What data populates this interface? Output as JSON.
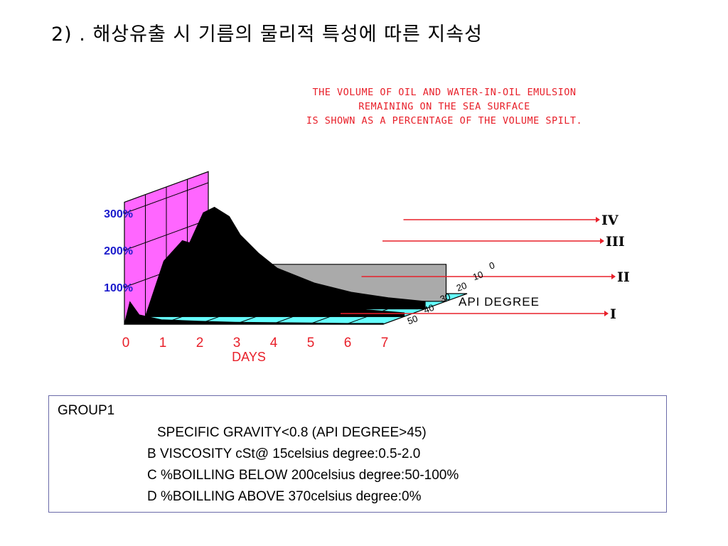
{
  "slide": {
    "title": "2) . 해상유출 시 기름의 물리적 특성에 따른  지속성"
  },
  "chart_data": {
    "type": "area",
    "title_lines": [
      "THE VOLUME OF OIL AND WATER-IN-OIL EMULSION",
      "REMAINING ON THE SEA SURFACE",
      "IS SHOWN AS A PERCENTAGE OF THE VOLUME SPILT."
    ],
    "xlabel": "DAYS",
    "ylabel": "",
    "zlabel": "API DEGREE",
    "x_ticks": [
      "0",
      "1",
      "2",
      "3",
      "4",
      "5",
      "6",
      "7"
    ],
    "y_ticks": [
      "100%",
      "200%",
      "300%"
    ],
    "z_ticks": [
      "0",
      "10",
      "20",
      "30",
      "40",
      "50"
    ],
    "xlim": [
      0,
      7
    ],
    "ylim": [
      0,
      300
    ],
    "series": [
      {
        "name": "I",
        "x": [
          0,
          0.15,
          0.4,
          1,
          2,
          3,
          4,
          5,
          6,
          7
        ],
        "y": [
          0,
          60,
          25,
          12,
          8,
          5,
          4,
          3,
          2,
          2
        ]
      },
      {
        "name": "II",
        "x": [
          0,
          0.5,
          1,
          1.5,
          2,
          2.5,
          3,
          4,
          5,
          6,
          7
        ],
        "y": [
          0,
          150,
          205,
          190,
          160,
          120,
          90,
          50,
          30,
          18,
          10
        ]
      },
      {
        "name": "III",
        "x": [
          0,
          0.5,
          1,
          1.3,
          1.7,
          2,
          2.5,
          3,
          4,
          5,
          6,
          7
        ],
        "y": [
          0,
          150,
          260,
          275,
          250,
          200,
          150,
          110,
          70,
          45,
          30,
          20
        ]
      },
      {
        "name": "IV",
        "x": [
          0,
          0.5,
          1,
          2,
          3,
          4,
          5,
          6,
          7
        ],
        "y": [
          0,
          40,
          95,
          100,
          100,
          100,
          100,
          100,
          100
        ]
      }
    ],
    "grid": true,
    "colors": {
      "back_wall": "#ff66ff",
      "floor": "#66ffff",
      "annotation_red": "#e8202a",
      "axis_blue": "#1a1acc",
      "curve": "#000000",
      "area_iv": "#aaaaaa"
    }
  },
  "group_box": {
    "heading": "GROUP1",
    "lines": [
      "SPECIFIC GRAVITY<0.8 (API DEGREE>45)",
      "B VISCOSITY cSt@ 15celsius degree:0.5-2.0",
      "C %BOILLING BELOW 200celsius degree:50-100%",
      "D %BOILLING ABOVE 370celsius degree:0%"
    ]
  }
}
